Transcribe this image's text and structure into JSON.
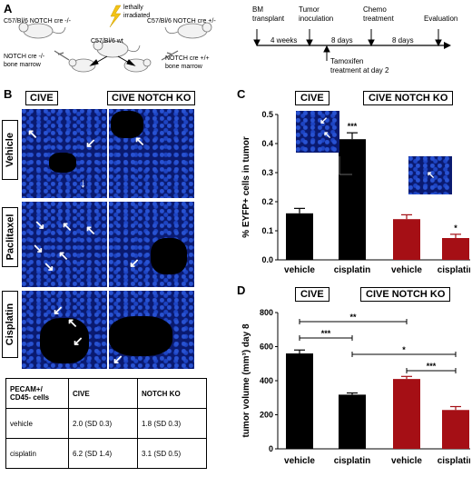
{
  "panels": {
    "A": "A",
    "B": "B",
    "C": "C",
    "D": "D"
  },
  "schematic": {
    "irradiated": "lethally\nirradiated",
    "donor_left": "C57/Bl/6 NOTCH cre -/-",
    "donor_right": "C57/Bl/6 NOTCH cre +/-",
    "recipient": "C57/Bl/6 wt",
    "marrow_left": "NOTCH cre -/-\nbone marrow",
    "marrow_right": "NOTCH cre +/+\nbone marrow"
  },
  "timeline": {
    "events": [
      "BM\ntransplant",
      "Tumor\ninoculation",
      "Chemo\ntreatment",
      "Evaluation"
    ],
    "intervals": [
      "4 weeks",
      "8 days",
      "8 days"
    ],
    "tamoxifen": "Tamoxifen\ntreatment at day 2"
  },
  "imaging": {
    "columns": [
      "CIVE",
      "CIVE NOTCH KO"
    ],
    "rows": [
      "Vehicle",
      "Paclitaxel",
      "Cisplatin"
    ]
  },
  "table": {
    "header": [
      "PECAM+/\nCD45- cells",
      "CIVE",
      "NOTCH KO"
    ],
    "rows": [
      [
        "vehicle",
        "2.0 (SD 0.3)",
        "1.8 (SD 0.3)"
      ],
      [
        "cisplatin",
        "6.2 (SD 1.4)",
        "3.1 (SD 0.5)"
      ]
    ]
  },
  "chart_data": [
    {
      "type": "bar",
      "ylabel": "% EYFP+ cells in tumor",
      "ylim": [
        0,
        0.5
      ],
      "yticks": [
        "0.0",
        "0.1",
        "0.2",
        "0.3",
        "0.4",
        "0.5"
      ],
      "group_labels": [
        "CIVE",
        "CIVE NOTCH KO"
      ],
      "categories": [
        "vehicle",
        "cisplatin",
        "vehicle",
        "cisplatin"
      ],
      "values": [
        0.16,
        0.415,
        0.14,
        0.075
      ],
      "errors": [
        0.017,
        0.022,
        0.015,
        0.013
      ],
      "colors": [
        "#000000",
        "#000000",
        "#a50f15",
        "#a50f15"
      ],
      "annotations": [
        "",
        "***",
        "",
        "*"
      ]
    },
    {
      "type": "bar",
      "ylabel": "tumor volume (mm³) day 8",
      "ylim": [
        0,
        800
      ],
      "yticks": [
        "0",
        "200",
        "400",
        "600",
        "800"
      ],
      "group_labels": [
        "CIVE",
        "CIVE NOTCH KO"
      ],
      "categories": [
        "vehicle",
        "cisplatin",
        "vehicle",
        "cisplatin"
      ],
      "values": [
        560,
        318,
        410,
        228
      ],
      "errors": [
        20,
        10,
        15,
        20
      ],
      "colors": [
        "#000000",
        "#000000",
        "#a50f15",
        "#a50f15"
      ],
      "significance": [
        "**",
        "***",
        "*",
        "***"
      ]
    }
  ]
}
